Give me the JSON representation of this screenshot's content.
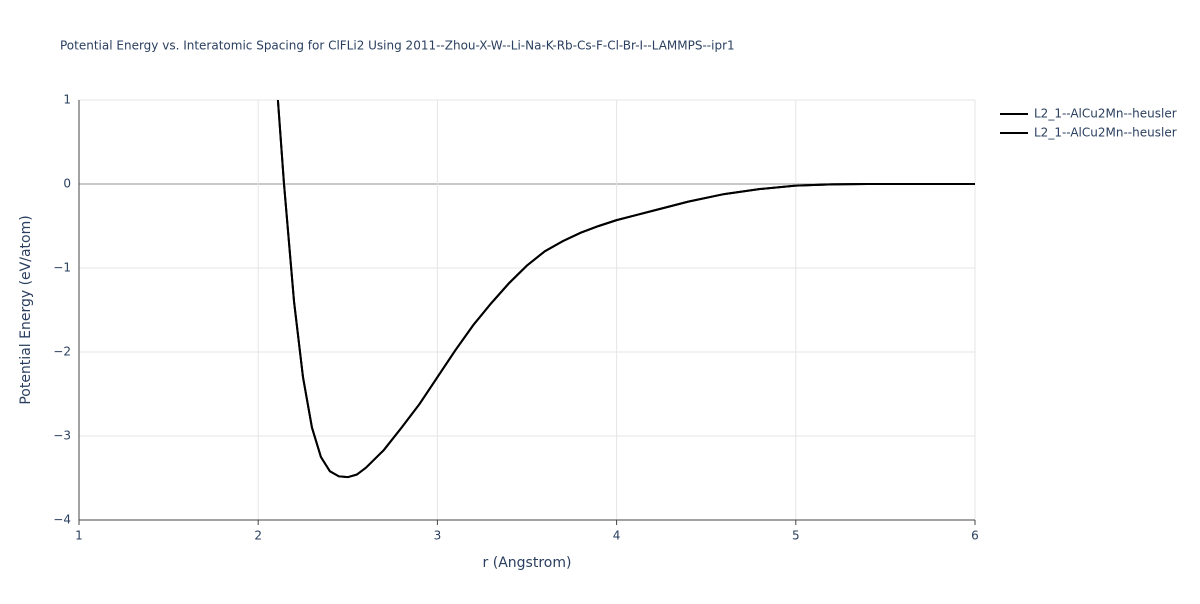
{
  "chart_data": {
    "type": "line",
    "title": "Potential Energy vs. Interatomic Spacing for ClFLi2 Using 2011--Zhou-X-W--Li-Na-K-Rb-Cs-F-Cl-Br-I--LAMMPS--ipr1",
    "x_label": "r (Angstrom)",
    "y_label": "Potential Energy (eV/atom)",
    "x": [
      2.11,
      2.144,
      2.2,
      2.25,
      2.3,
      2.35,
      2.4,
      2.45,
      2.5,
      2.55,
      2.6,
      2.7,
      2.8,
      2.9,
      3.0,
      3.1,
      3.2,
      3.3,
      3.4,
      3.5,
      3.6,
      3.7,
      3.8,
      3.9,
      4.0,
      4.2,
      4.4,
      4.6,
      4.8,
      5.0,
      5.2,
      5.4,
      5.6,
      5.8,
      6.0
    ],
    "series": [
      {
        "name": "L2_1--AlCu2Mn--heusler",
        "color": "#000000",
        "values": [
          1.0,
          0.0,
          -1.4,
          -2.3,
          -2.9,
          -3.25,
          -3.42,
          -3.48,
          -3.49,
          -3.46,
          -3.38,
          -3.17,
          -2.9,
          -2.62,
          -2.3,
          -1.98,
          -1.68,
          -1.42,
          -1.18,
          -0.97,
          -0.8,
          -0.68,
          -0.58,
          -0.5,
          -0.43,
          -0.32,
          -0.21,
          -0.12,
          -0.06,
          -0.02,
          -0.005,
          0,
          0,
          0,
          0
        ]
      },
      {
        "name": "L2_1--AlCu2Mn--heusler",
        "color": "#000000",
        "values": [
          1.0,
          0.0,
          -1.4,
          -2.3,
          -2.9,
          -3.25,
          -3.42,
          -3.48,
          -3.49,
          -3.46,
          -3.38,
          -3.17,
          -2.9,
          -2.62,
          -2.3,
          -1.98,
          -1.68,
          -1.42,
          -1.18,
          -0.97,
          -0.8,
          -0.68,
          -0.58,
          -0.5,
          -0.43,
          -0.32,
          -0.21,
          -0.12,
          -0.06,
          -0.02,
          -0.005,
          0,
          0,
          0,
          0
        ]
      }
    ],
    "xlim": [
      1,
      6
    ],
    "xticks": [
      1,
      2,
      3,
      4,
      5,
      6
    ],
    "ylim": [
      -4,
      1
    ],
    "yticks": [
      {
        "value": -4,
        "label": "−4"
      },
      {
        "value": -3,
        "label": "−3"
      },
      {
        "value": -2,
        "label": "−2"
      },
      {
        "value": -1,
        "label": "−1"
      },
      0,
      1
    ],
    "grid": true,
    "legend": "top-right"
  }
}
